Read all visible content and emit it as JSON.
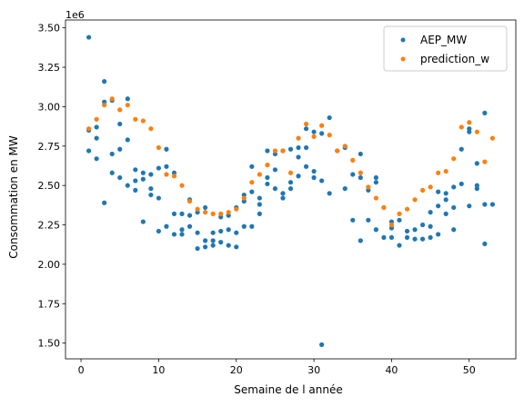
{
  "chart_data": {
    "type": "scatter",
    "xlabel": "Semaine de l année",
    "ylabel": "Consommation en MW",
    "offset_label": "1e6",
    "xlim": [
      -2,
      56
    ],
    "ylim": [
      1.4,
      3.55
    ],
    "xticks": [
      0,
      10,
      20,
      30,
      40,
      50
    ],
    "yticks": [
      1.5,
      1.75,
      2.0,
      2.25,
      2.5,
      2.75,
      3.0,
      3.25,
      3.5
    ],
    "ytick_labels": [
      "1.50",
      "1.75",
      "2.00",
      "2.25",
      "2.50",
      "2.75",
      "3.00",
      "3.25",
      "3.50"
    ],
    "legend_position": "top-right",
    "series": [
      {
        "name": "AEP_MW",
        "color": "#1f77b4",
        "points": [
          [
            1,
            3.44
          ],
          [
            1,
            2.85
          ],
          [
            1,
            2.72
          ],
          [
            2,
            2.87
          ],
          [
            2,
            2.8
          ],
          [
            2,
            2.67
          ],
          [
            3,
            3.16
          ],
          [
            3,
            3.03
          ],
          [
            3,
            2.39
          ],
          [
            4,
            3.04
          ],
          [
            4,
            2.7
          ],
          [
            4,
            2.58
          ],
          [
            5,
            2.89
          ],
          [
            5,
            2.73
          ],
          [
            5,
            2.55
          ],
          [
            6,
            3.05
          ],
          [
            6,
            2.79
          ],
          [
            6,
            2.5
          ],
          [
            7,
            2.6
          ],
          [
            7,
            2.53
          ],
          [
            7,
            2.47
          ],
          [
            8,
            2.58
          ],
          [
            8,
            2.54
          ],
          [
            8,
            2.27
          ],
          [
            9,
            2.57
          ],
          [
            9,
            2.48
          ],
          [
            9,
            2.44
          ],
          [
            10,
            2.61
          ],
          [
            10,
            2.42
          ],
          [
            10,
            2.21
          ],
          [
            11,
            2.73
          ],
          [
            11,
            2.62
          ],
          [
            11,
            2.24
          ],
          [
            12,
            2.58
          ],
          [
            12,
            2.32
          ],
          [
            12,
            2.19
          ],
          [
            13,
            2.32
          ],
          [
            13,
            2.22
          ],
          [
            13,
            2.19
          ],
          [
            14,
            2.41
          ],
          [
            14,
            2.31
          ],
          [
            14,
            2.24
          ],
          [
            15,
            2.33
          ],
          [
            15,
            2.2
          ],
          [
            15,
            2.1
          ],
          [
            16,
            2.36
          ],
          [
            16,
            2.15
          ],
          [
            16,
            2.11
          ],
          [
            17,
            2.2
          ],
          [
            17,
            2.15
          ],
          [
            17,
            2.12
          ],
          [
            18,
            2.3
          ],
          [
            18,
            2.21
          ],
          [
            18,
            2.14
          ],
          [
            19,
            2.31
          ],
          [
            19,
            2.22
          ],
          [
            19,
            2.12
          ],
          [
            20,
            2.36
          ],
          [
            20,
            2.2
          ],
          [
            20,
            2.11
          ],
          [
            21,
            2.44
          ],
          [
            21,
            2.4
          ],
          [
            21,
            2.24
          ],
          [
            22,
            2.62
          ],
          [
            22,
            2.46
          ],
          [
            22,
            2.24
          ],
          [
            23,
            2.42
          ],
          [
            23,
            2.38
          ],
          [
            23,
            2.32
          ],
          [
            24,
            2.72
          ],
          [
            24,
            2.55
          ],
          [
            24,
            2.51
          ],
          [
            25,
            2.7
          ],
          [
            25,
            2.6
          ],
          [
            25,
            2.48
          ],
          [
            26,
            2.72
          ],
          [
            26,
            2.45
          ],
          [
            26,
            2.42
          ],
          [
            27,
            2.73
          ],
          [
            27,
            2.52
          ],
          [
            27,
            2.48
          ],
          [
            28,
            2.74
          ],
          [
            28,
            2.68
          ],
          [
            28,
            2.56
          ],
          [
            29,
            2.86
          ],
          [
            29,
            2.74
          ],
          [
            29,
            2.62
          ],
          [
            30,
            2.84
          ],
          [
            30,
            2.59
          ],
          [
            30,
            2.55
          ],
          [
            31,
            2.83
          ],
          [
            31,
            2.53
          ],
          [
            31,
            1.49
          ],
          [
            32,
            2.93
          ],
          [
            32,
            2.45
          ],
          [
            33,
            2.72
          ],
          [
            34,
            2.74
          ],
          [
            34,
            2.48
          ],
          [
            35,
            2.57
          ],
          [
            35,
            2.28
          ],
          [
            36,
            2.7
          ],
          [
            36,
            2.55
          ],
          [
            36,
            2.15
          ],
          [
            37,
            2.47
          ],
          [
            37,
            2.28
          ],
          [
            38,
            2.55
          ],
          [
            38,
            2.52
          ],
          [
            38,
            2.22
          ],
          [
            39,
            2.36
          ],
          [
            39,
            2.17
          ],
          [
            40,
            2.27
          ],
          [
            40,
            2.23
          ],
          [
            40,
            2.17
          ],
          [
            41,
            2.28
          ],
          [
            41,
            2.12
          ],
          [
            42,
            2.21
          ],
          [
            42,
            2.17
          ],
          [
            43,
            2.22
          ],
          [
            43,
            2.16
          ],
          [
            44,
            2.25
          ],
          [
            44,
            2.16
          ],
          [
            45,
            2.33
          ],
          [
            45,
            2.24
          ],
          [
            45,
            2.17
          ],
          [
            46,
            2.46
          ],
          [
            46,
            2.37
          ],
          [
            46,
            2.19
          ],
          [
            47,
            2.45
          ],
          [
            47,
            2.41
          ],
          [
            47,
            2.32
          ],
          [
            48,
            2.49
          ],
          [
            48,
            2.36
          ],
          [
            48,
            2.22
          ],
          [
            49,
            2.73
          ],
          [
            49,
            2.51
          ],
          [
            50,
            2.86
          ],
          [
            50,
            2.84
          ],
          [
            50,
            2.37
          ],
          [
            51,
            2.64
          ],
          [
            51,
            2.5
          ],
          [
            51,
            2.48
          ],
          [
            52,
            2.96
          ],
          [
            52,
            2.38
          ],
          [
            52,
            2.13
          ],
          [
            53,
            2.38
          ]
        ]
      },
      {
        "name": "prediction_w",
        "color": "#ff7f0e",
        "points": [
          [
            1,
            2.86
          ],
          [
            2,
            2.92
          ],
          [
            3,
            3.01
          ],
          [
            4,
            3.05
          ],
          [
            5,
            2.98
          ],
          [
            6,
            3.01
          ],
          [
            7,
            2.92
          ],
          [
            8,
            2.91
          ],
          [
            9,
            2.86
          ],
          [
            10,
            2.74
          ],
          [
            11,
            2.57
          ],
          [
            12,
            2.56
          ],
          [
            13,
            2.5
          ],
          [
            14,
            2.4
          ],
          [
            15,
            2.35
          ],
          [
            16,
            2.33
          ],
          [
            17,
            2.32
          ],
          [
            18,
            2.32
          ],
          [
            19,
            2.33
          ],
          [
            20,
            2.35
          ],
          [
            21,
            2.42
          ],
          [
            22,
            2.52
          ],
          [
            23,
            2.57
          ],
          [
            24,
            2.63
          ],
          [
            25,
            2.72
          ],
          [
            26,
            2.72
          ],
          [
            27,
            2.58
          ],
          [
            28,
            2.8
          ],
          [
            29,
            2.89
          ],
          [
            30,
            2.81
          ],
          [
            31,
            2.88
          ],
          [
            32,
            2.82
          ],
          [
            33,
            2.72
          ],
          [
            34,
            2.75
          ],
          [
            35,
            2.66
          ],
          [
            36,
            2.58
          ],
          [
            37,
            2.49
          ],
          [
            38,
            2.42
          ],
          [
            39,
            2.36
          ],
          [
            40,
            2.25
          ],
          [
            41,
            2.32
          ],
          [
            42,
            2.35
          ],
          [
            43,
            2.41
          ],
          [
            44,
            2.47
          ],
          [
            45,
            2.49
          ],
          [
            46,
            2.58
          ],
          [
            47,
            2.59
          ],
          [
            48,
            2.67
          ],
          [
            49,
            2.87
          ],
          [
            50,
            2.9
          ],
          [
            51,
            2.84
          ],
          [
            52,
            2.65
          ],
          [
            53,
            2.8
          ]
        ]
      }
    ]
  }
}
